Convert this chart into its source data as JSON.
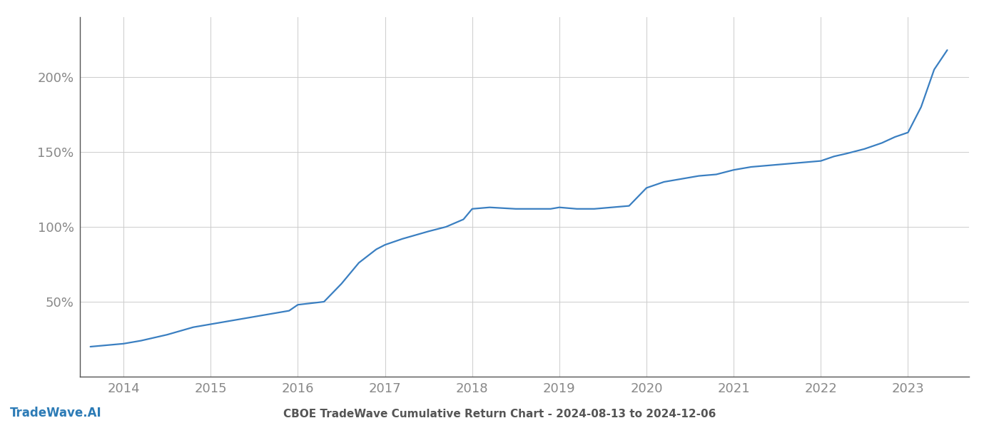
{
  "title": "CBOE TradeWave Cumulative Return Chart - 2024-08-13 to 2024-12-06",
  "watermark": "TradeWave.AI",
  "line_color": "#3a7fc1",
  "background_color": "#ffffff",
  "grid_color": "#cccccc",
  "x_years": [
    2013.62,
    2014.0,
    2014.2,
    2014.5,
    2014.8,
    2015.0,
    2015.3,
    2015.6,
    2015.9,
    2016.0,
    2016.15,
    2016.3,
    2016.5,
    2016.7,
    2016.9,
    2017.0,
    2017.2,
    2017.5,
    2017.7,
    2017.9,
    2018.0,
    2018.2,
    2018.5,
    2018.7,
    2018.9,
    2019.0,
    2019.2,
    2019.4,
    2019.6,
    2019.8,
    2020.0,
    2020.2,
    2020.4,
    2020.6,
    2020.8,
    2021.0,
    2021.2,
    2021.4,
    2021.6,
    2021.8,
    2022.0,
    2022.15,
    2022.3,
    2022.5,
    2022.7,
    2022.85,
    2022.95,
    2023.0,
    2023.15,
    2023.3,
    2023.45
  ],
  "y_values": [
    20,
    22,
    24,
    28,
    33,
    35,
    38,
    41,
    44,
    48,
    49,
    50,
    62,
    76,
    85,
    88,
    92,
    97,
    100,
    105,
    112,
    113,
    112,
    112,
    112,
    113,
    112,
    112,
    113,
    114,
    126,
    130,
    132,
    134,
    135,
    138,
    140,
    141,
    142,
    143,
    144,
    147,
    149,
    152,
    156,
    160,
    162,
    163,
    180,
    205,
    218
  ],
  "yticks": [
    50,
    100,
    150,
    200
  ],
  "ytick_labels": [
    "50%",
    "100%",
    "150%",
    "200%"
  ],
  "xtick_years": [
    2014,
    2015,
    2016,
    2017,
    2018,
    2019,
    2020,
    2021,
    2022,
    2023
  ],
  "xlim": [
    2013.5,
    2023.7
  ],
  "ylim": [
    0,
    240
  ],
  "line_width": 1.6,
  "axis_color": "#555555",
  "tick_color": "#888888",
  "title_color": "#555555",
  "title_fontsize": 11,
  "watermark_color": "#2c7bb6",
  "watermark_fontsize": 12
}
